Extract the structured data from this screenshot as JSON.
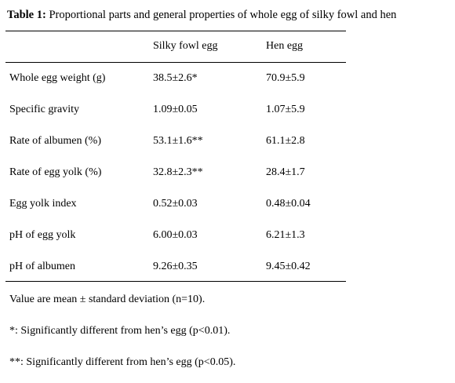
{
  "caption": {
    "label": "Table 1:",
    "text": " Proportional parts and general properties of whole egg of silky fowl and hen"
  },
  "table": {
    "columns": [
      "",
      "Silky fowl egg",
      "Hen egg"
    ],
    "rows": [
      {
        "property": "Whole egg weight (g)",
        "silky": "38.5±2.6*",
        "hen": "70.9±5.9"
      },
      {
        "property": "Specific gravity",
        "silky": "1.09±0.05",
        "hen": "1.07±5.9"
      },
      {
        "property": "Rate of albumen (%)",
        "silky": "53.1±1.6**",
        "hen": "61.1±2.8"
      },
      {
        "property": "Rate of egg yolk (%)",
        "silky": "32.8±2.3**",
        "hen": "28.4±1.7"
      },
      {
        "property": "Egg yolk index",
        "silky": "0.52±0.03",
        "hen": "0.48±0.04"
      },
      {
        "property": "pH of egg yolk",
        "silky": "6.00±0.03",
        "hen": "6.21±1.3"
      },
      {
        "property": "pH of albumen",
        "silky": "9.26±0.35",
        "hen": "9.45±0.42"
      }
    ]
  },
  "notes": [
    "Value are mean ± standard deviation (n=10).",
    "*: Significantly different from hen’s egg (p<0.01).",
    "**: Significantly different from hen’s egg (p<0.05)."
  ]
}
